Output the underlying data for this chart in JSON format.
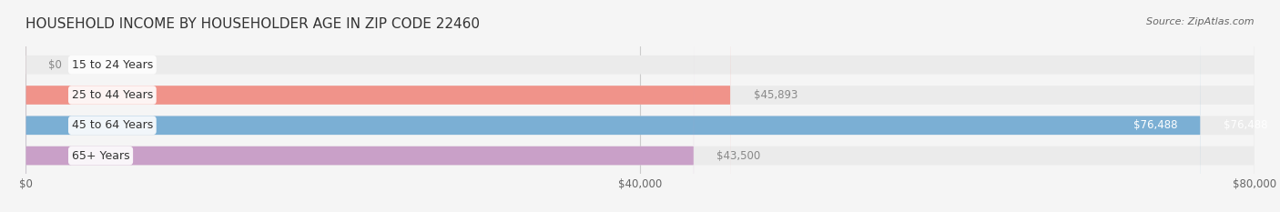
{
  "title": "HOUSEHOLD INCOME BY HOUSEHOLDER AGE IN ZIP CODE 22460",
  "source": "Source: ZipAtlas.com",
  "categories": [
    "15 to 24 Years",
    "25 to 44 Years",
    "45 to 64 Years",
    "65+ Years"
  ],
  "values": [
    0,
    45893,
    76488,
    43500
  ],
  "bar_colors": [
    "#f5c5a3",
    "#f0938a",
    "#7bafd4",
    "#c9a0c8"
  ],
  "label_colors": [
    "#888888",
    "#888888",
    "#ffffff",
    "#888888"
  ],
  "value_labels": [
    "$0",
    "$45,893",
    "$76,488",
    "$43,500"
  ],
  "xlim": [
    0,
    80000
  ],
  "xticks": [
    0,
    40000,
    80000
  ],
  "xticklabels": [
    "$0",
    "$40,000",
    "$80,000"
  ],
  "bg_color": "#f5f5f5",
  "bar_bg_color": "#ebebeb",
  "title_fontsize": 11,
  "source_fontsize": 8,
  "bar_height": 0.62,
  "figsize": [
    14.06,
    2.33
  ],
  "dpi": 100
}
